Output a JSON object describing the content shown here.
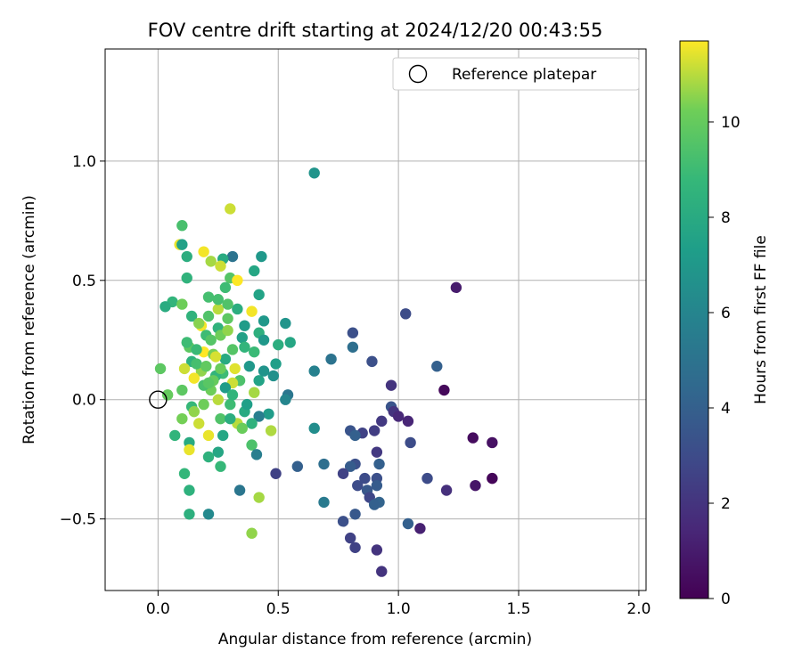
{
  "chart_data": {
    "type": "scatter",
    "title": "FOV centre drift starting at 2024/12/20 00:43:55",
    "xlabel": "Angular distance from reference (arcmin)",
    "ylabel": "Rotation from reference (arcmin)",
    "xlim": [
      -0.22,
      2.03
    ],
    "ylim": [
      -0.8,
      1.47
    ],
    "x_ticks": [
      0.0,
      0.5,
      1.0,
      1.5,
      2.0
    ],
    "x_tick_labels": [
      "0.0",
      "0.5",
      "1.0",
      "1.5",
      "2.0"
    ],
    "y_ticks": [
      -0.5,
      0.0,
      0.5,
      1.0
    ],
    "y_tick_labels": [
      "−0.5",
      "0.0",
      "0.5",
      "1.0"
    ],
    "grid": true,
    "legend": {
      "position": "top-right",
      "entries": [
        "Reference platepar"
      ]
    },
    "reference_point": {
      "label": "Reference platepar",
      "x": 0.0,
      "y": 0.0,
      "marker": "open-circle"
    },
    "colorbar": {
      "label": "Hours from first FF file",
      "colormap": "viridis",
      "range": [
        0,
        11.7
      ],
      "ticks": [
        0,
        2,
        4,
        6,
        8,
        10
      ],
      "tick_labels": [
        "0",
        "2",
        "4",
        "6",
        "8",
        "10"
      ]
    },
    "series": [
      {
        "columns": [
          "x",
          "y",
          "hours"
        ],
        "points": [
          [
            0.65,
            0.95,
            6.8
          ],
          [
            0.3,
            0.8,
            11.2
          ],
          [
            0.1,
            0.73,
            9.3
          ],
          [
            0.09,
            0.65,
            11.5
          ],
          [
            0.1,
            0.65,
            7.5
          ],
          [
            0.31,
            0.6,
            5.0
          ],
          [
            0.27,
            0.59,
            8.0
          ],
          [
            0.12,
            0.6,
            8.2
          ],
          [
            0.22,
            0.58,
            10.8
          ],
          [
            0.19,
            0.62,
            11.6
          ],
          [
            0.43,
            0.6,
            7.0
          ],
          [
            0.26,
            0.56,
            11.2
          ],
          [
            0.4,
            0.54,
            7.8
          ],
          [
            0.12,
            0.51,
            8.5
          ],
          [
            0.3,
            0.51,
            9.6
          ],
          [
            1.24,
            0.47,
            1.0
          ],
          [
            0.28,
            0.47,
            9.0
          ],
          [
            0.33,
            0.5,
            11.7
          ],
          [
            0.42,
            0.44,
            7.6
          ],
          [
            0.21,
            0.43,
            9.2
          ],
          [
            0.06,
            0.41,
            8.6
          ],
          [
            0.03,
            0.39,
            8.1
          ],
          [
            0.1,
            0.4,
            10.2
          ],
          [
            0.25,
            0.38,
            11.0
          ],
          [
            0.33,
            0.38,
            8.2
          ],
          [
            0.39,
            0.37,
            11.6
          ],
          [
            1.03,
            0.36,
            3.0
          ],
          [
            0.14,
            0.35,
            8.5
          ],
          [
            0.21,
            0.35,
            9.5
          ],
          [
            0.29,
            0.34,
            9.8
          ],
          [
            0.44,
            0.33,
            7.0
          ],
          [
            0.53,
            0.32,
            6.8
          ],
          [
            0.36,
            0.31,
            7.2
          ],
          [
            0.18,
            0.31,
            11.6
          ],
          [
            0.25,
            0.3,
            8.5
          ],
          [
            0.81,
            0.28,
            3.2
          ],
          [
            0.42,
            0.28,
            8.3
          ],
          [
            0.2,
            0.27,
            9.0
          ],
          [
            0.35,
            0.26,
            7.5
          ],
          [
            0.44,
            0.25,
            7.0
          ],
          [
            0.5,
            0.23,
            8.2
          ],
          [
            0.55,
            0.24,
            7.8
          ],
          [
            0.81,
            0.22,
            4.8
          ],
          [
            0.13,
            0.22,
            9.8
          ],
          [
            0.31,
            0.21,
            9.6
          ],
          [
            0.19,
            0.2,
            11.7
          ],
          [
            0.4,
            0.2,
            8.9
          ],
          [
            0.23,
            0.19,
            10.3
          ],
          [
            0.72,
            0.17,
            5.0
          ],
          [
            0.89,
            0.16,
            3.2
          ],
          [
            1.16,
            0.14,
            4.0
          ],
          [
            0.28,
            0.17,
            8.0
          ],
          [
            0.14,
            0.16,
            8.4
          ],
          [
            0.11,
            0.13,
            11.2
          ],
          [
            0.01,
            0.13,
            9.8
          ],
          [
            0.38,
            0.14,
            7.0
          ],
          [
            0.32,
            0.13,
            11.4
          ],
          [
            0.49,
            0.15,
            7.4
          ],
          [
            0.65,
            0.12,
            5.8
          ],
          [
            0.44,
            0.12,
            6.8
          ],
          [
            0.18,
            0.12,
            10.6
          ],
          [
            0.27,
            0.11,
            9.0
          ],
          [
            0.48,
            0.1,
            6.6
          ],
          [
            0.15,
            0.09,
            11.6
          ],
          [
            0.24,
            0.1,
            8.6
          ],
          [
            0.34,
            0.08,
            9.4
          ],
          [
            0.42,
            0.08,
            7.6
          ],
          [
            0.31,
            0.07,
            11.2
          ],
          [
            0.97,
            0.06,
            2.0
          ],
          [
            0.28,
            0.05,
            7.2
          ],
          [
            0.1,
            0.04,
            9.8
          ],
          [
            0.22,
            0.04,
            10.2
          ],
          [
            0.04,
            0.02,
            10.0
          ],
          [
            0.54,
            0.02,
            5.2
          ],
          [
            0.4,
            0.03,
            10.8
          ],
          [
            1.19,
            0.04,
            0.3
          ],
          [
            0.53,
            0.0,
            6.0
          ],
          [
            0.25,
            0.0,
            11.0
          ],
          [
            0.97,
            -0.03,
            3.4
          ],
          [
            0.19,
            -0.02,
            10.2
          ],
          [
            0.3,
            -0.02,
            9.0
          ],
          [
            0.14,
            -0.03,
            8.8
          ],
          [
            0.98,
            -0.05,
            2.0
          ],
          [
            0.36,
            -0.05,
            8.0
          ],
          [
            0.46,
            -0.06,
            7.2
          ],
          [
            0.42,
            -0.07,
            5.6
          ],
          [
            1.0,
            -0.07,
            1.5
          ],
          [
            0.26,
            -0.08,
            9.5
          ],
          [
            0.1,
            -0.08,
            10.3
          ],
          [
            0.17,
            -0.1,
            11.2
          ],
          [
            0.93,
            -0.09,
            2.2
          ],
          [
            1.04,
            -0.09,
            1.4
          ],
          [
            0.39,
            -0.1,
            8.4
          ],
          [
            0.33,
            -0.1,
            11.0
          ],
          [
            0.35,
            -0.12,
            10.1
          ],
          [
            0.65,
            -0.12,
            6.4
          ],
          [
            0.47,
            -0.13,
            10.9
          ],
          [
            0.07,
            -0.15,
            8.6
          ],
          [
            0.21,
            -0.15,
            11.5
          ],
          [
            0.27,
            -0.15,
            7.8
          ],
          [
            0.8,
            -0.13,
            3.4
          ],
          [
            0.9,
            -0.13,
            2.4
          ],
          [
            0.85,
            -0.14,
            2.6
          ],
          [
            0.82,
            -0.15,
            4.0
          ],
          [
            1.31,
            -0.16,
            0.4
          ],
          [
            1.39,
            -0.18,
            0.6
          ],
          [
            0.13,
            -0.18,
            8.0
          ],
          [
            1.05,
            -0.18,
            3.0
          ],
          [
            0.39,
            -0.19,
            9.4
          ],
          [
            0.13,
            -0.21,
            11.5
          ],
          [
            0.25,
            -0.22,
            7.8
          ],
          [
            0.41,
            -0.23,
            5.6
          ],
          [
            0.21,
            -0.24,
            8.4
          ],
          [
            0.91,
            -0.22,
            2.2
          ],
          [
            0.26,
            -0.28,
            8.8
          ],
          [
            0.58,
            -0.28,
            4.0
          ],
          [
            0.69,
            -0.27,
            4.8
          ],
          [
            0.82,
            -0.27,
            3.2
          ],
          [
            0.49,
            -0.31,
            2.6
          ],
          [
            0.8,
            -0.28,
            3.8
          ],
          [
            0.92,
            -0.27,
            4.0
          ],
          [
            0.77,
            -0.31,
            2.6
          ],
          [
            0.86,
            -0.33,
            3.0
          ],
          [
            0.91,
            -0.33,
            3.2
          ],
          [
            1.12,
            -0.33,
            3.0
          ],
          [
            1.39,
            -0.33,
            0.2
          ],
          [
            1.32,
            -0.36,
            0.8
          ],
          [
            0.11,
            -0.31,
            8.7
          ],
          [
            0.83,
            -0.36,
            3.0
          ],
          [
            0.91,
            -0.36,
            3.8
          ],
          [
            0.13,
            -0.38,
            8.4
          ],
          [
            0.34,
            -0.38,
            5.2
          ],
          [
            0.87,
            -0.38,
            3.6
          ],
          [
            1.2,
            -0.38,
            1.8
          ],
          [
            0.42,
            -0.41,
            10.8
          ],
          [
            0.88,
            -0.41,
            2.8
          ],
          [
            0.69,
            -0.43,
            5.4
          ],
          [
            0.92,
            -0.43,
            4.2
          ],
          [
            0.9,
            -0.44,
            4.0
          ],
          [
            0.82,
            -0.48,
            3.6
          ],
          [
            0.21,
            -0.48,
            6.2
          ],
          [
            0.13,
            -0.48,
            8.3
          ],
          [
            0.77,
            -0.51,
            3.2
          ],
          [
            1.04,
            -0.52,
            4.0
          ],
          [
            1.09,
            -0.54,
            1.2
          ],
          [
            0.39,
            -0.56,
            10.6
          ],
          [
            0.8,
            -0.58,
            2.6
          ],
          [
            0.82,
            -0.62,
            2.6
          ],
          [
            0.91,
            -0.63,
            2.0
          ],
          [
            0.93,
            -0.72,
            2.0
          ],
          [
            0.25,
            0.42,
            9.2
          ],
          [
            0.29,
            0.4,
            9.5
          ],
          [
            0.17,
            0.32,
            10.5
          ],
          [
            0.22,
            0.25,
            9.6
          ],
          [
            0.26,
            0.27,
            10.2
          ],
          [
            0.16,
            0.15,
            9.2
          ],
          [
            0.23,
            0.08,
            10.0
          ],
          [
            0.19,
            0.06,
            9.3
          ],
          [
            0.29,
            0.29,
            10.6
          ],
          [
            0.36,
            0.22,
            8.6
          ],
          [
            0.12,
            0.24,
            9.0
          ],
          [
            0.24,
            0.18,
            11.3
          ],
          [
            0.2,
            0.14,
            9.9
          ],
          [
            0.15,
            -0.05,
            10.6
          ],
          [
            0.3,
            -0.08,
            8.2
          ],
          [
            0.37,
            -0.02,
            7.4
          ],
          [
            0.31,
            0.02,
            8.6
          ],
          [
            0.21,
            0.07,
            9.7
          ],
          [
            0.26,
            0.13,
            10.1
          ],
          [
            0.16,
            0.21,
            8.9
          ]
        ]
      }
    ]
  }
}
